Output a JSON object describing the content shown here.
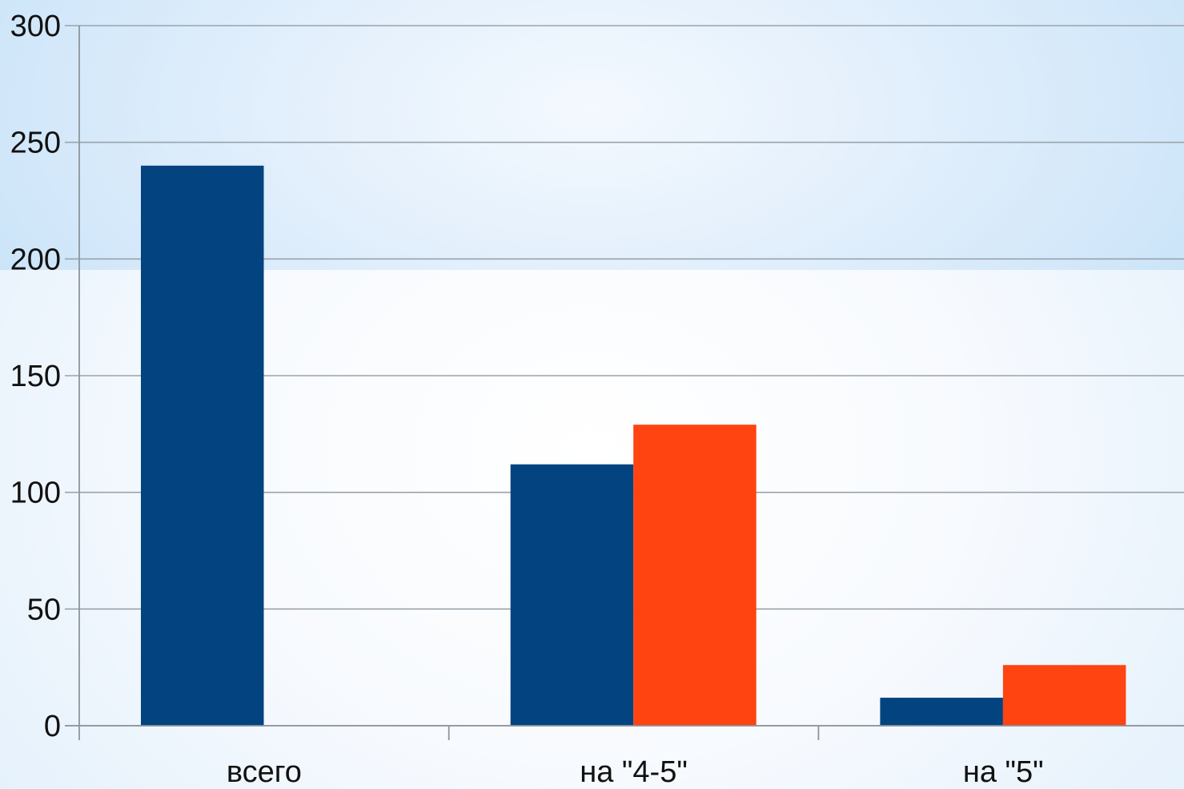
{
  "colors": {
    "series_1": "#03437f",
    "series_2": "#ff4311",
    "grid": "#9aa3ab",
    "axis": "#8c959d"
  },
  "chart_data": {
    "type": "bar",
    "categories": [
      "всего",
      "на \"4-5\"",
      "на \"5\""
    ],
    "series": [
      {
        "values": [
          240,
          112,
          12
        ]
      },
      {
        "values": [
          null,
          129,
          26
        ]
      }
    ],
    "ylim": [
      0,
      300
    ],
    "yticks": [
      0,
      50,
      100,
      150,
      200,
      250,
      300
    ],
    "grid": true,
    "legend": "none"
  }
}
